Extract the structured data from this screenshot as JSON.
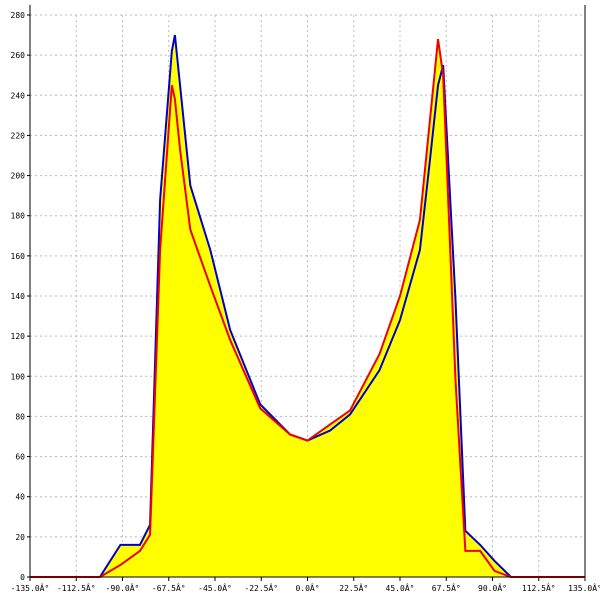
{
  "chart_data": {
    "type": "line",
    "fill_color": "#ffff00",
    "x": [
      -135,
      -101,
      -91,
      -81.5,
      -76.6,
      -71.7,
      -66,
      -64.5,
      -62,
      -57,
      -47.3,
      -37.6,
      -23,
      -8.5,
      0,
      11,
      20.7,
      35,
      45,
      54.7,
      59.6,
      63.5,
      66,
      72,
      76.8,
      84,
      91,
      99,
      135
    ],
    "series": [
      {
        "color": "#0000cc",
        "values": [
          0,
          0,
          16,
          16,
          26,
          188,
          262,
          270,
          245,
          195,
          163,
          123,
          86,
          71,
          68,
          73,
          81,
          103,
          128,
          163,
          208,
          245,
          255,
          138,
          23,
          16,
          8,
          0,
          0
        ]
      },
      {
        "color": "#ee0000",
        "values": [
          0,
          0,
          6,
          13,
          21,
          163,
          245,
          238,
          213,
          173,
          145,
          118,
          84,
          71,
          68,
          76,
          83,
          111,
          140,
          178,
          228,
          268,
          250,
          98,
          13,
          13,
          3,
          0,
          0
        ]
      }
    ],
    "xlim": [
      -135,
      135
    ],
    "ylim": [
      0,
      280
    ],
    "xticks": [
      {
        "value": -135,
        "label": "-135.0Â°"
      },
      {
        "value": -112.5,
        "label": "-112.5Â°"
      },
      {
        "value": -90,
        "label": "-90.0Â°"
      },
      {
        "value": -67.5,
        "label": "-67.5Â°"
      },
      {
        "value": -45,
        "label": "-45.0Â°"
      },
      {
        "value": -22.5,
        "label": "-22.5Â°"
      },
      {
        "value": 0,
        "label": "0.0Â°"
      },
      {
        "value": 22.5,
        "label": "22.5Â°"
      },
      {
        "value": 45,
        "label": "45.0Â°"
      },
      {
        "value": 67.5,
        "label": "67.5Â°"
      },
      {
        "value": 90,
        "label": "90.0Â°"
      },
      {
        "value": 112.5,
        "label": "112.5Â°"
      },
      {
        "value": 135,
        "label": "135.0Â°"
      }
    ],
    "yticks": [
      0,
      20,
      40,
      60,
      80,
      100,
      120,
      140,
      160,
      180,
      200,
      220,
      240,
      260,
      280
    ],
    "grid": true
  }
}
